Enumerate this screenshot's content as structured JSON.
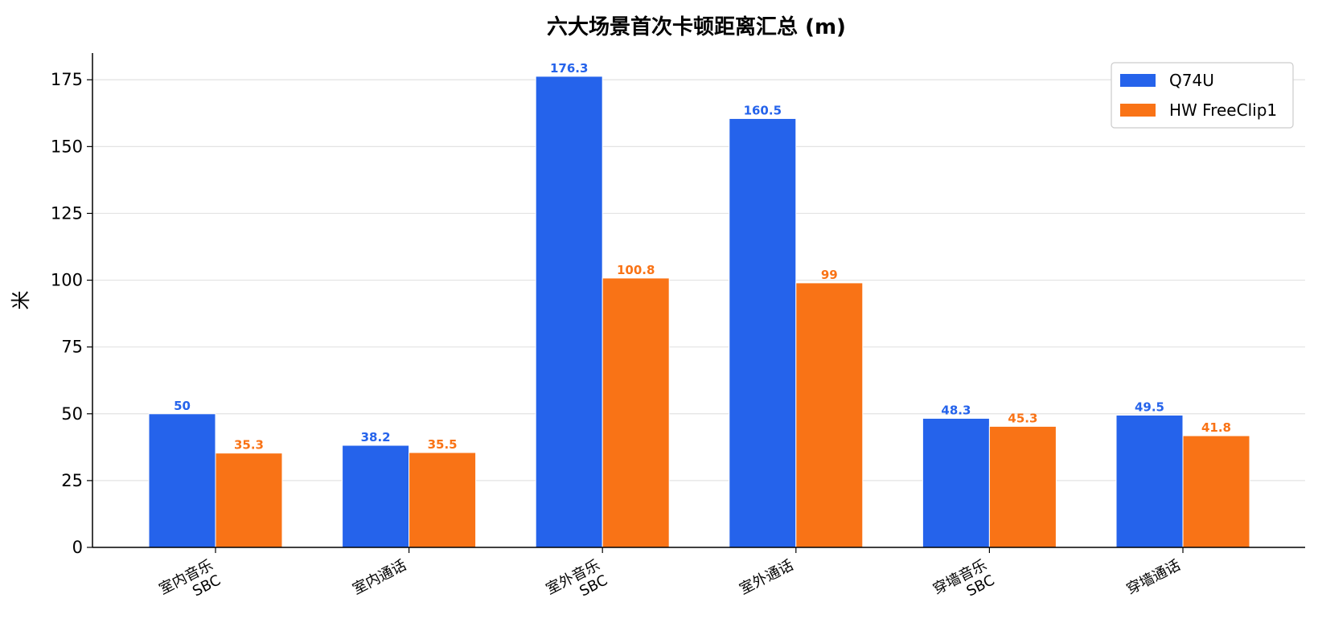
{
  "chart_data": {
    "type": "bar",
    "title": "六大场景首次卡顿距离汇总 (m)",
    "xlabel": "",
    "ylabel": "米",
    "ylim": [
      0,
      185
    ],
    "yticks": [
      0,
      25,
      50,
      75,
      100,
      125,
      150,
      175
    ],
    "categories": [
      "室内音乐\nSBC",
      "室内通话",
      "室外音乐\nSBC",
      "室外通话",
      "穿墙音乐\nSBC",
      "穿墙通话"
    ],
    "series": [
      {
        "name": "Q74U",
        "color": "#2563eb",
        "values": [
          50,
          38.2,
          176.3,
          160.5,
          48.3,
          49.5
        ]
      },
      {
        "name": "HW FreeClip1",
        "color": "#f97316",
        "values": [
          35.3,
          35.5,
          100.8,
          99,
          45.3,
          41.8
        ]
      }
    ],
    "grid": "horizontal",
    "legend_position": "top-right"
  }
}
